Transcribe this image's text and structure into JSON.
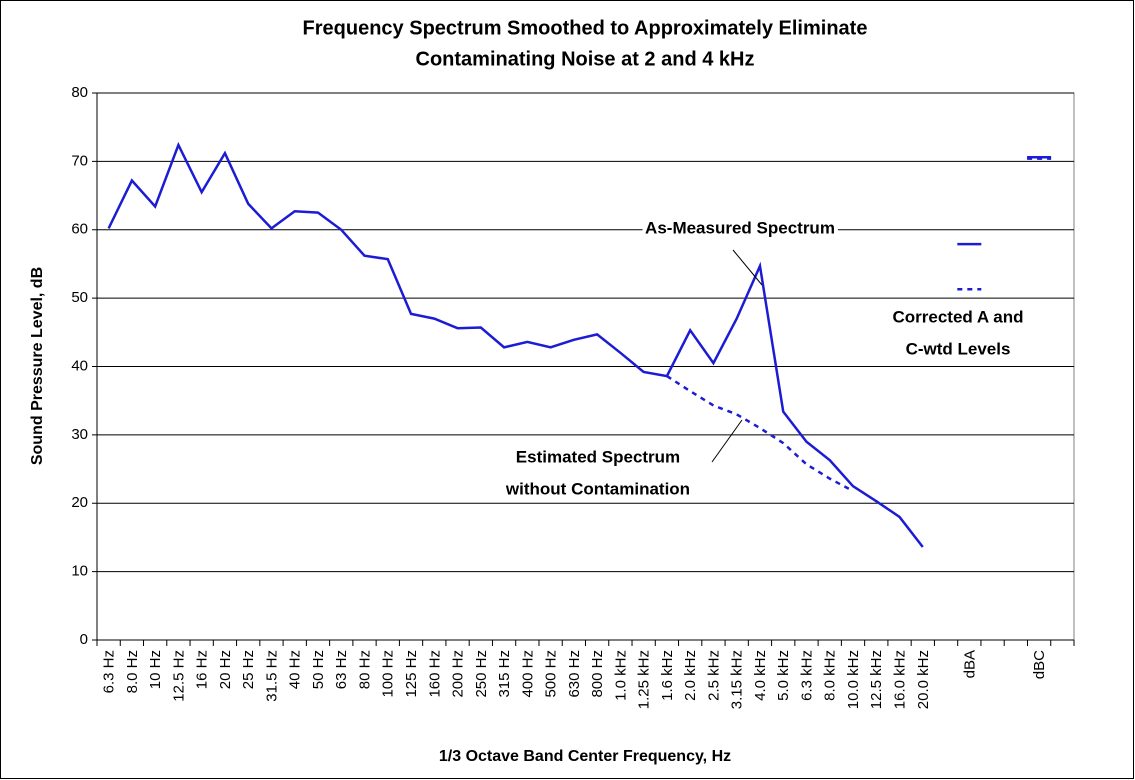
{
  "chart_data": {
    "type": "line",
    "title": [
      "Frequency Spectrum Smoothed to Approximately Eliminate",
      "Contaminating Noise at 2 and 4 kHz"
    ],
    "y_label": "Sound Pressure Level, dB",
    "x_label": "1/3 Octave Band Center Frequency, Hz",
    "categories": [
      "6.3 Hz",
      "8.0 Hz",
      "10 Hz",
      "12.5 Hz",
      "16 Hz",
      "20 Hz",
      "25 Hz",
      "31.5 Hz",
      "40 Hz",
      "50 Hz",
      "63 Hz",
      "80 Hz",
      "100 Hz",
      "125 Hz",
      "160 Hz",
      "200 Hz",
      "250 Hz",
      "315 Hz",
      "400 Hz",
      "500 Hz",
      "630 Hz",
      "800 Hz",
      "1.0 kHz",
      "1.25 kHz",
      "1.6 kHz",
      "2.0 kHz",
      "2.5 kHz",
      "3.15 kHz",
      "4.0 kHz",
      "5.0 kHz",
      "6.3 kHz",
      "8.0 kHz",
      "10.0 kHz",
      "12.5 kHz",
      "16.0 kHz",
      "20.0 kHz",
      null,
      "dBA",
      null,
      null,
      "dBC",
      null
    ],
    "series": [
      {
        "color": "#1c1cd4",
        "dash": false,
        "values": [
          60.2,
          67.2,
          63.4,
          72.4,
          65.5,
          71.2,
          63.8,
          60.2,
          62.7,
          62.5,
          60.0,
          56.2,
          55.7,
          47.7,
          47.0,
          45.6,
          45.7,
          42.8,
          43.6,
          42.8,
          43.9,
          44.7,
          42.0,
          39.2,
          38.6,
          45.3,
          40.5,
          47.0,
          54.7,
          33.4,
          29.0,
          26.3,
          22.5,
          20.3,
          18.0,
          13.6,
          null,
          57.9,
          null,
          null,
          70.6,
          null
        ]
      },
      {
        "color": "#1c1cd4",
        "dash": true,
        "values": [
          null,
          null,
          null,
          null,
          null,
          null,
          null,
          null,
          null,
          null,
          null,
          null,
          null,
          null,
          null,
          null,
          null,
          null,
          null,
          null,
          null,
          null,
          null,
          null,
          38.6,
          36.4,
          34.3,
          33.0,
          31.0,
          28.8,
          25.7,
          23.6,
          21.8,
          null,
          null,
          null,
          null,
          51.3,
          null,
          null,
          70.4,
          null
        ]
      }
    ],
    "annotations": [
      {
        "lines": [
          "As-Measured Spectrum"
        ]
      },
      {
        "lines": [
          "Estimated Spectrum",
          "without Contamination"
        ]
      },
      {
        "lines": [
          "Corrected A and",
          "C-wtd Levels"
        ]
      }
    ],
    "ylim": [
      0,
      80
    ],
    "yticks": [
      0,
      10,
      20,
      30,
      40,
      50,
      60,
      70,
      80
    ],
    "grid": true
  }
}
